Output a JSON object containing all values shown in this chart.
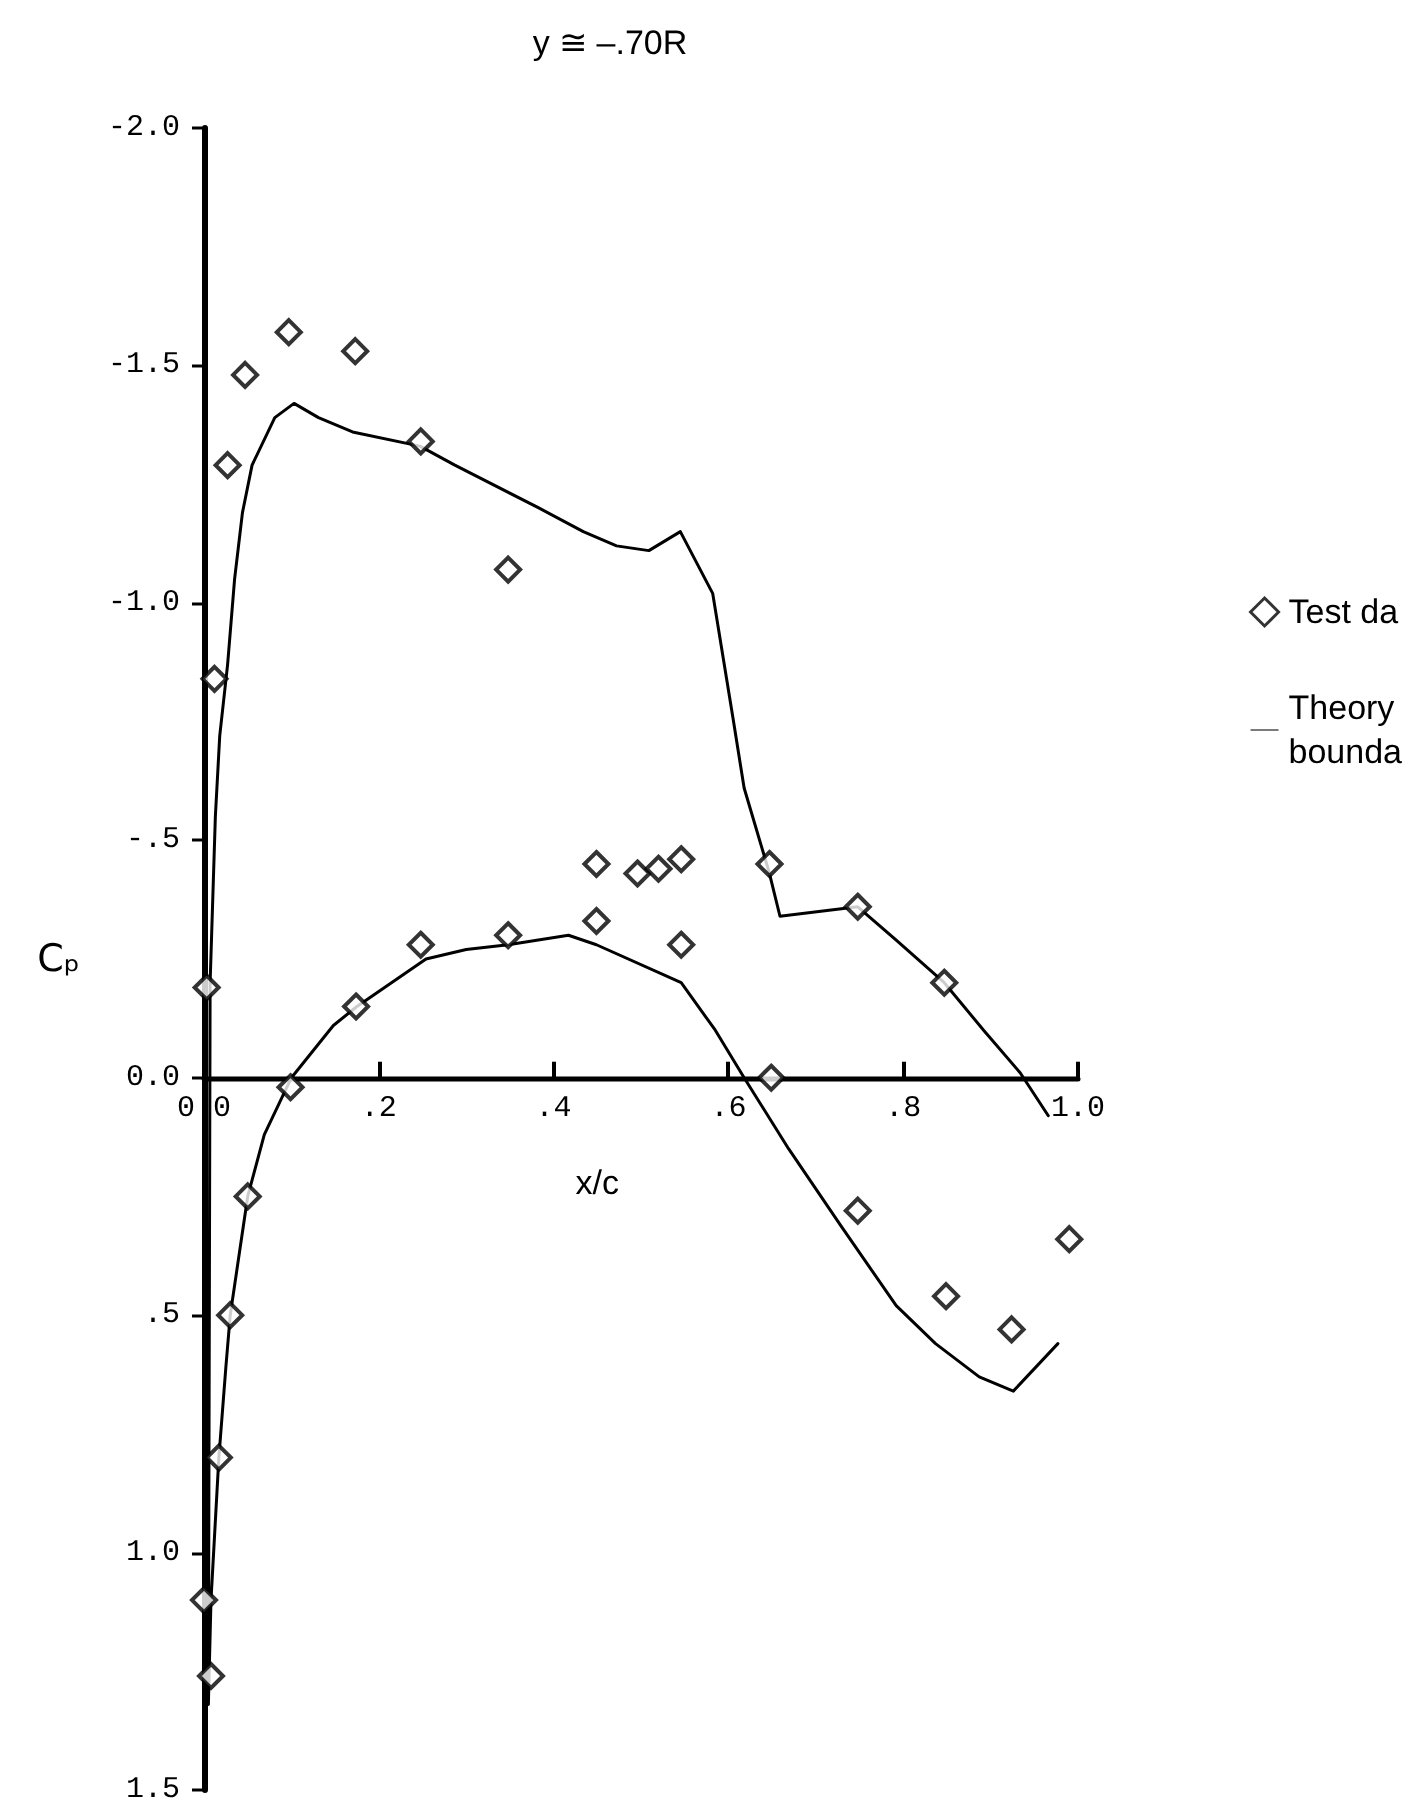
{
  "chart_data": {
    "type": "scatter",
    "title": "y ≅ –.70R",
    "xlabel": "x/c",
    "ylabel": "Cₚ",
    "xlim": [
      0,
      1.0
    ],
    "xticks": [
      {
        "value": 0,
        "label": "0.0"
      },
      {
        "value": 0.2,
        "label": ".2"
      },
      {
        "value": 0.4,
        "label": ".4"
      },
      {
        "value": 0.6,
        "label": ".6"
      },
      {
        "value": 0.8,
        "label": ".8"
      },
      {
        "value": 1.0,
        "label": "1.0"
      }
    ],
    "ylim": [
      1.5,
      -2.0
    ],
    "yticks": [
      {
        "value": -2,
        "label": "-2.0"
      },
      {
        "value": -1.5,
        "label": "-1.5"
      },
      {
        "value": -1,
        "label": "-1.0"
      },
      {
        "value": -0.5,
        "label": "-.5"
      },
      {
        "value": 0,
        "label": "0.0"
      },
      {
        "value": 0.5,
        "label": ".5"
      },
      {
        "value": 1,
        "label": "1.0"
      },
      {
        "value": 1.5,
        "label": "1.5"
      }
    ],
    "legend": "right",
    "series": [
      {
        "name": "Test da",
        "marker": "diamond",
        "color": "#000000",
        "x": [
          0.003,
          0.012,
          0.027,
          0.047,
          0.097,
          0.173,
          0.248,
          0.348,
          0.449,
          0.496,
          0.52,
          0.546,
          0.647,
          0.748,
          0.847,
          0.649,
          0.546,
          0.449,
          0.348,
          0.248,
          0.174,
          0.099,
          0.05,
          0.03,
          0.017,
          0.0,
          0.008,
          0.748,
          0.849,
          0.924,
          0.99
        ],
        "values": [
          -0.19,
          -0.84,
          -1.29,
          -1.48,
          -1.57,
          -1.53,
          -1.34,
          -1.07,
          -0.45,
          -0.43,
          -0.44,
          -0.46,
          -0.45,
          -0.36,
          -0.2,
          0.0,
          -0.28,
          -0.33,
          -0.3,
          -0.28,
          -0.15,
          0.02,
          0.25,
          0.5,
          0.8,
          1.1,
          1.26,
          0.28,
          0.46,
          0.53,
          0.34
        ]
      },
      {
        "name": "Theory\nbounda",
        "type": "line",
        "marker": "none",
        "line_style": "solid",
        "color": "#000000",
        "x": [
          0.966,
          0.934,
          0.892,
          0.847,
          0.792,
          0.748,
          0.659,
          0.647,
          0.618,
          0.605,
          0.582,
          0.545,
          0.509,
          0.472,
          0.434,
          0.383,
          0.287,
          0.247,
          0.17,
          0.131,
          0.103,
          0.081,
          0.055,
          0.044,
          0.035,
          0.027,
          0.018,
          0.013,
          0.007,
          0.005,
          0.008,
          0.017,
          0.025,
          0.03,
          0.05,
          0.069,
          0.1,
          0.148,
          0.175,
          0.254,
          0.3,
          0.348,
          0.417,
          0.449,
          0.546,
          0.585,
          0.618,
          0.669,
          0.728,
          0.792,
          0.837,
          0.887,
          0.926,
          0.977
        ],
        "values": [
          0.08,
          -0.01,
          -0.1,
          -0.2,
          -0.29,
          -0.36,
          -0.34,
          -0.43,
          -0.61,
          -0.76,
          -1.02,
          -1.15,
          -1.11,
          -1.12,
          -1.15,
          -1.2,
          -1.29,
          -1.33,
          -1.36,
          -1.39,
          -1.42,
          -1.39,
          -1.29,
          -1.19,
          -1.05,
          -0.87,
          -0.72,
          -0.55,
          -0.2,
          1.32,
          1.1,
          0.8,
          0.61,
          0.5,
          0.25,
          0.12,
          0.0,
          -0.11,
          -0.15,
          -0.25,
          -0.27,
          -0.28,
          -0.3,
          -0.28,
          -0.2,
          -0.1,
          0.0,
          0.15,
          0.31,
          0.48,
          0.56,
          0.63,
          0.66,
          0.56
        ]
      }
    ]
  }
}
